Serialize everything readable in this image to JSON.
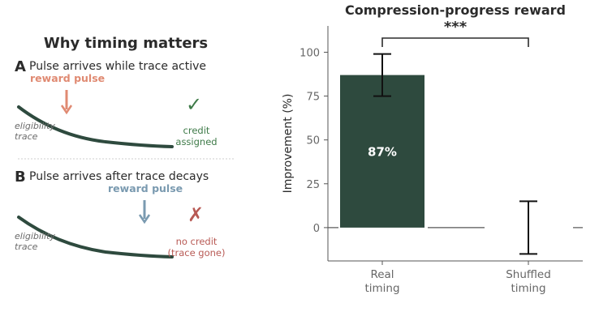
{
  "left": {
    "title": "Why timing matters",
    "panel_a": {
      "letter": "A",
      "text": "Pulse arrives while trace active",
      "pulse_label": "reward pulse",
      "trace_label_1": "eligibility",
      "trace_label_2": "trace",
      "mark": "✓",
      "outcome_1": "credit",
      "outcome_2": "assigned"
    },
    "panel_b": {
      "letter": "B",
      "text": "Pulse arrives after trace decays",
      "pulse_label": "reward pulse",
      "trace_label_1": "eligibility",
      "trace_label_2": "trace",
      "mark": "✗",
      "outcome_1": "no credit",
      "outcome_2": "(trace gone)"
    }
  },
  "colors": {
    "bar": "#2e4a3e",
    "trace": "#2e4a3e",
    "pulse_a": "#e08a72",
    "pulse_b": "#7a9ab0",
    "check": "#3e7a48",
    "cross": "#b85a55",
    "text": "#2b2b2b",
    "axis": "#555555",
    "tick_text": "#666666"
  },
  "chart_data": {
    "type": "bar",
    "title": "Compression-progress reward",
    "ylabel": "Improvement (%)",
    "xlabel": "",
    "categories": [
      "Real\ntiming",
      "Shuffled\ntiming"
    ],
    "values": [
      87,
      0
    ],
    "errors": [
      [
        75,
        99
      ],
      [
        -15,
        15
      ]
    ],
    "bar_labels": [
      "87%",
      ""
    ],
    "ylim": [
      -19,
      115
    ],
    "yticks": [
      0,
      25,
      50,
      75,
      100
    ],
    "significance": "***",
    "grid": false
  }
}
